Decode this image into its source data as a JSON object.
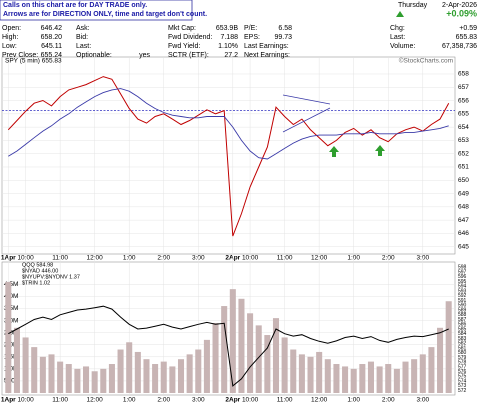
{
  "header": {
    "note": [
      "Calls on this chart are for DAY TRADE only.",
      "Arrows are for DIRECTION ONLY, time and target don't count."
    ],
    "columns": [
      [
        {
          "label": "Open:",
          "value": "646.42"
        },
        {
          "label": "High:",
          "value": "658.20"
        },
        {
          "label": "Low:",
          "value": "645.11"
        },
        {
          "label": "Prev Close:",
          "value": "655.24"
        }
      ],
      [
        {
          "label": "Ask:"
        },
        {
          "label": "Bid:"
        },
        {
          "label": "Last:"
        },
        {
          "label": "Optionable:",
          "value": "yes"
        }
      ],
      [
        {
          "label": "Mkt Cap:",
          "value": "653.9B"
        },
        {
          "label": "Fwd Dividend:",
          "value": "7.188"
        },
        {
          "label": "Fwd Yield:",
          "value": "1.10%"
        },
        {
          "label": "SCTR (ETF):",
          "value": "27.2"
        }
      ],
      [
        {
          "label": "P/E:",
          "value": "6.58"
        },
        {
          "label": "EPS:",
          "value": "99.73"
        },
        {
          "label": "Last Earnings:"
        },
        {
          "label": "Next Earnings:"
        }
      ]
    ],
    "day": "Thursday",
    "date": "2-Apr-2026",
    "change_pct": "+0.09%",
    "chg_label": "Chg:",
    "chg": "+0.59",
    "last_label": "Last:",
    "last": "655.83",
    "volume_label": "Volume:",
    "volume": "67,358,736",
    "credit": "©StockCharts.com"
  },
  "chart_data": [
    {
      "type": "line",
      "label": "SPY (5 min) 655.83",
      "categories": [
        "1Apr",
        null,
        "10:00",
        null,
        null,
        null,
        "11:00",
        null,
        null,
        null,
        "12:00",
        null,
        null,
        null,
        "1:00",
        null,
        null,
        null,
        "2:00",
        null,
        null,
        null,
        "3:00",
        null,
        null,
        null,
        "2Apr",
        null,
        "10:00",
        null,
        null,
        null,
        "11:00",
        null,
        null,
        null,
        "12:00",
        null,
        null,
        null,
        "1:00",
        null,
        null,
        null,
        "2:00",
        null,
        null,
        null,
        "3:00",
        null,
        null,
        null
      ],
      "series": [
        {
          "color": "#c00000",
          "values": [
            653.8,
            654.5,
            655.2,
            655.8,
            656.0,
            655.6,
            656.3,
            656.8,
            657.0,
            657.2,
            657.5,
            657.8,
            657.6,
            656.5,
            655.4,
            654.6,
            654.3,
            654.8,
            655.0,
            654.6,
            654.2,
            654.5,
            654.9,
            655.3,
            655.0,
            655.24,
            645.8,
            647.5,
            649.5,
            651.0,
            652.5,
            655.5,
            654.8,
            654.2,
            654.6,
            653.8,
            653.2,
            652.6,
            653.0,
            653.6,
            653.9,
            653.4,
            653.8,
            653.2,
            652.9,
            653.5,
            653.8,
            654.0,
            653.7,
            654.2,
            654.6,
            655.8
          ]
        },
        {
          "color": "#3a3aa8",
          "values": [
            651.8,
            652.2,
            652.7,
            653.2,
            653.7,
            654.1,
            654.6,
            655.0,
            655.5,
            655.9,
            656.3,
            656.6,
            656.8,
            656.9,
            656.7,
            656.3,
            655.8,
            655.4,
            655.1,
            654.9,
            654.8,
            654.7,
            654.7,
            654.8,
            654.8,
            654.8,
            654.0,
            653.0,
            652.2,
            651.7,
            651.6,
            652.0,
            652.4,
            652.8,
            653.1,
            653.3,
            653.4,
            653.4,
            653.4,
            653.5,
            653.5,
            653.5,
            653.6,
            653.5,
            653.5,
            653.5,
            653.6,
            653.6,
            653.7,
            653.8,
            653.9,
            654.1
          ]
        }
      ],
      "reference_line": 655.24,
      "ylim": [
        644.6,
        658.6
      ],
      "yticks": [
        645,
        646,
        647,
        648,
        649,
        650,
        651,
        652,
        653,
        654,
        655,
        656,
        657,
        658
      ],
      "grid": true
    },
    {
      "type": "bar",
      "legend": [
        "QQQ 584.98",
        "$NYAD 446.00",
        "$NYUPV:$NYDNV 1.37",
        "$TRIN 1.02"
      ],
      "categories": [
        "1Apr",
        null,
        "10:00",
        null,
        null,
        null,
        "11:00",
        null,
        null,
        null,
        "12:00",
        null,
        null,
        null,
        "1:00",
        null,
        null,
        null,
        "2:00",
        null,
        null,
        null,
        "3:00",
        null,
        null,
        null,
        "2Apr",
        null,
        "10:00",
        null,
        null,
        null,
        "11:00",
        null,
        null,
        null,
        "12:00",
        null,
        null,
        null,
        "1:00",
        null,
        null,
        null,
        "2:00",
        null,
        null,
        null,
        "3:00",
        null,
        null,
        null
      ],
      "values": [
        4600000,
        2700000,
        2300000,
        1900000,
        1500000,
        1600000,
        1300000,
        1200000,
        1000000,
        1100000,
        900000,
        1000000,
        1200000,
        1800000,
        2100000,
        1700000,
        1400000,
        1200000,
        1300000,
        1100000,
        1400000,
        1600000,
        1800000,
        2200000,
        2900000,
        3600000,
        4300000,
        3900000,
        3300000,
        2800000,
        2400000,
        3100000,
        2300000,
        1800000,
        1600000,
        1500000,
        1700000,
        1400000,
        1200000,
        1100000,
        1000000,
        1200000,
        1300000,
        1100000,
        1200000,
        1000000,
        1300000,
        1400000,
        1600000,
        1900000,
        2700000,
        3800000
      ],
      "color": "#c8b4b4",
      "series": [
        {
          "axis": "y2",
          "color": "#000000",
          "values": [
            584,
            585,
            586,
            587,
            587.5,
            587,
            588,
            588.5,
            589,
            589.2,
            589.5,
            589.8,
            589.2,
            587.5,
            586,
            585,
            585.2,
            585.6,
            586,
            585.4,
            585,
            585.5,
            586,
            586.4,
            586,
            586.2,
            573,
            574.5,
            577,
            579,
            581,
            585,
            584,
            583.5,
            583.8,
            583,
            582.4,
            582,
            582.5,
            583.2,
            583.5,
            583,
            583.4,
            582.6,
            582.2,
            582.8,
            583.2,
            583.5,
            583.4,
            583.8,
            584.2,
            585
          ]
        }
      ],
      "ylim": [
        0,
        5300000
      ],
      "yticks": [
        {
          "value": 500000,
          "label": "500K"
        },
        {
          "value": 1000000,
          "label": "1.0M"
        },
        {
          "value": 1500000,
          "label": "1.5M"
        },
        {
          "value": 2000000,
          "label": "2.0M"
        },
        {
          "value": 2500000,
          "label": "2.5M"
        },
        {
          "value": 3000000,
          "label": "3.0M"
        },
        {
          "value": 3500000,
          "label": "3.5M"
        },
        {
          "value": 4000000,
          "label": "4.0M"
        },
        {
          "value": 4500000,
          "label": "4.5M"
        }
      ],
      "y2lim": [
        571.5,
        598.5
      ],
      "y2ticks": [
        572,
        573,
        574,
        575,
        576,
        577,
        578,
        579,
        580,
        581,
        582,
        583,
        584,
        585,
        586,
        587,
        588,
        589,
        590,
        591,
        592,
        593,
        594,
        595,
        596,
        597,
        598
      ],
      "grid": true
    }
  ]
}
